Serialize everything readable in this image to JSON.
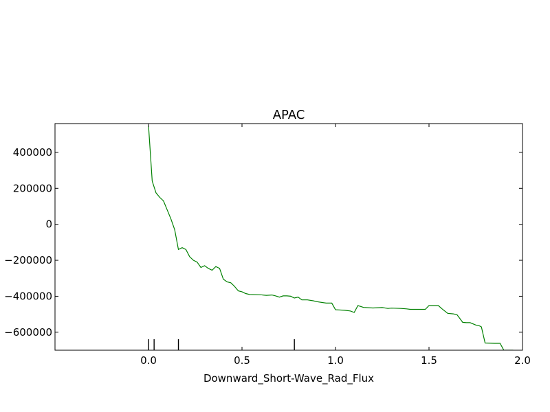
{
  "chart_data": {
    "type": "line",
    "title": "APAC",
    "xlabel": "Downward_Short-Wave_Rad_Flux",
    "ylabel": "",
    "xlim": [
      -0.5,
      2.0
    ],
    "ylim": [
      -700000,
      560000
    ],
    "x_ticks": [
      0.0,
      0.5,
      1.0,
      1.5,
      2.0
    ],
    "x_tick_labels": [
      "0.0",
      "0.5",
      "1.0",
      "1.5",
      "2.0"
    ],
    "y_ticks": [
      400000,
      200000,
      0,
      -200000,
      -400000,
      -600000
    ],
    "y_tick_labels": [
      "400000",
      "200000",
      "0",
      "−200000",
      "−400000",
      "−600000"
    ],
    "grid": false,
    "legend": "none",
    "series": [
      {
        "color": "#008000",
        "x": [
          0.0,
          0.02,
          0.04,
          0.06,
          0.08,
          0.1,
          0.12,
          0.14,
          0.16,
          0.18,
          0.2,
          0.22,
          0.24,
          0.26,
          0.28,
          0.3,
          0.32,
          0.34,
          0.36,
          0.38,
          0.4,
          0.42,
          0.44,
          0.46,
          0.48,
          0.5,
          0.52,
          0.54,
          0.6,
          0.63,
          0.66,
          0.68,
          0.7,
          0.72,
          0.74,
          0.76,
          0.78,
          0.8,
          0.82,
          0.85,
          0.88,
          0.9,
          0.95,
          0.98,
          1.0,
          1.05,
          1.08,
          1.1,
          1.12,
          1.15,
          1.2,
          1.25,
          1.28,
          1.3,
          1.35,
          1.38,
          1.4,
          1.45,
          1.48,
          1.5,
          1.55,
          1.57,
          1.6,
          1.63,
          1.65,
          1.68,
          1.7,
          1.72,
          1.75,
          1.77,
          1.78,
          1.8,
          1.85,
          1.88,
          1.9,
          1.95
        ],
        "y": [
          550000,
          240000,
          175000,
          150000,
          130000,
          80000,
          30000,
          -30000,
          -140000,
          -130000,
          -140000,
          -180000,
          -200000,
          -210000,
          -240000,
          -230000,
          -245000,
          -255000,
          -235000,
          -245000,
          -305000,
          -320000,
          -325000,
          -345000,
          -370000,
          -375000,
          -385000,
          -390000,
          -392000,
          -395000,
          -393000,
          -398000,
          -405000,
          -398000,
          -398000,
          -400000,
          -410000,
          -405000,
          -420000,
          -420000,
          -425000,
          -430000,
          -438000,
          -438000,
          -475000,
          -478000,
          -482000,
          -490000,
          -452000,
          -462000,
          -465000,
          -463000,
          -468000,
          -466000,
          -468000,
          -470000,
          -473000,
          -473000,
          -473000,
          -452000,
          -452000,
          -470000,
          -495000,
          -498000,
          -503000,
          -545000,
          -547000,
          -547000,
          -560000,
          -565000,
          -570000,
          -660000,
          -662000,
          -662000,
          -700000,
          -700000
        ]
      }
    ],
    "rug_x": [
      0.0,
      0.03,
      0.16,
      0.78
    ]
  }
}
